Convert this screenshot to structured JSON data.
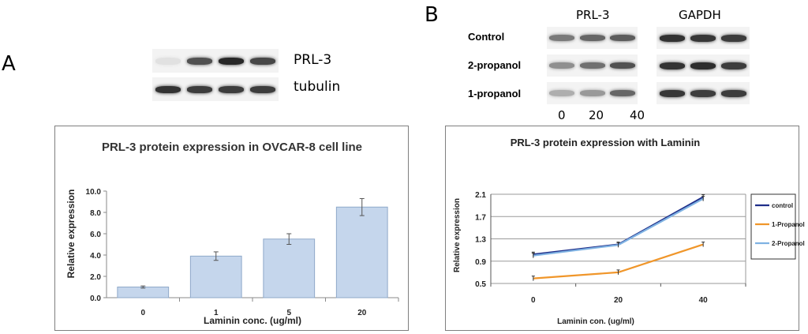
{
  "panel_a": {
    "letter": "A",
    "blot": {
      "rows": [
        {
          "label": "PRL-3",
          "intensities": [
            0.05,
            0.75,
            0.95,
            0.8
          ]
        },
        {
          "label": "tubulin",
          "intensities": [
            0.9,
            0.85,
            0.85,
            0.85
          ]
        }
      ]
    }
  },
  "panel_b": {
    "letter": "B",
    "blot": {
      "column_headers": [
        "PRL-3",
        "GAPDH"
      ],
      "row_labels": [
        "Control",
        "2-propanol",
        "1-propanol"
      ],
      "lane_labels": [
        "0",
        "20",
        "40"
      ],
      "prl3_intensities": [
        [
          0.55,
          0.65,
          0.7
        ],
        [
          0.45,
          0.6,
          0.75
        ],
        [
          0.3,
          0.4,
          0.65
        ]
      ],
      "gapdh_intensities": [
        [
          0.9,
          0.88,
          0.85
        ],
        [
          0.9,
          0.92,
          0.85
        ],
        [
          0.88,
          0.85,
          0.85
        ]
      ]
    }
  },
  "chart_data": [
    {
      "type": "bar",
      "title": "PRL-3 protein expression in OVCAR-8 cell line",
      "xlabel": "Laminin conc. (ug/ml)",
      "ylabel": "Relative expression",
      "categories": [
        "0",
        "1",
        "5",
        "20"
      ],
      "values": [
        1.0,
        3.9,
        5.5,
        8.5
      ],
      "errors": [
        0.1,
        0.4,
        0.5,
        0.8
      ],
      "ylim": [
        0,
        10
      ],
      "yticks": [
        "0.0",
        "2.0",
        "4.0",
        "6.0",
        "8.0",
        "10.0"
      ],
      "bar_color": "#c5d6ec",
      "bar_edge": "#8fa9c9"
    },
    {
      "type": "line",
      "title": "PRL-3 protein expression with Laminin",
      "xlabel": "Laminin con. (ug/ml)",
      "ylabel": "Relative expression",
      "categories": [
        "0",
        "20",
        "40"
      ],
      "ylim": [
        0.5,
        2.1
      ],
      "yticks": [
        "0.5",
        "0.9",
        "1.3",
        "1.7",
        "2.1"
      ],
      "grid": true,
      "legend": "right",
      "series": [
        {
          "name": "control",
          "values": [
            1.02,
            1.2,
            2.05
          ],
          "color": "#1f2f8a"
        },
        {
          "name": "1-Propanol",
          "values": [
            0.59,
            0.7,
            1.2
          ],
          "color": "#f0962a"
        },
        {
          "name": "2-Propanol",
          "values": [
            1.0,
            1.19,
            2.02
          ],
          "color": "#7fb2e2"
        }
      ]
    }
  ]
}
